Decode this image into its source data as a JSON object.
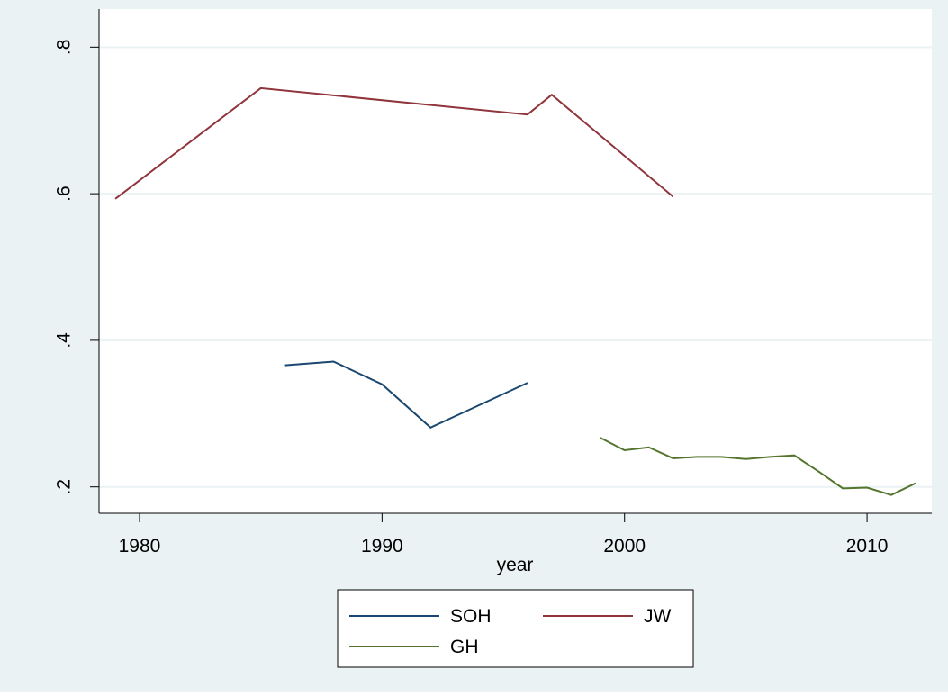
{
  "chart_data": {
    "type": "line",
    "x_label": "year",
    "xlim": [
      1978.33,
      2012.67
    ],
    "xticks": [
      1980,
      1990,
      2000,
      2010
    ],
    "ylim": [
      0.164,
      0.852
    ],
    "yticks": [
      {
        "value": 0.2,
        "label": ".2"
      },
      {
        "value": 0.4,
        "label": ".4"
      },
      {
        "value": 0.6,
        "label": ".6"
      },
      {
        "value": 0.8,
        "label": ".8"
      }
    ],
    "grid": true,
    "legend": "bottom",
    "series": [
      {
        "name": "SOH",
        "color": "#1a476f",
        "x": [
          1986,
          1988,
          1990,
          1992,
          1996
        ],
        "values": [
          0.366,
          0.371,
          0.34,
          0.281,
          0.342
        ]
      },
      {
        "name": "JW",
        "color": "#90353b",
        "x": [
          1979,
          1985,
          1996,
          1997,
          2002
        ],
        "values": [
          0.593,
          0.744,
          0.708,
          0.735,
          0.596
        ]
      },
      {
        "name": "GH",
        "color": "#55752f",
        "x": [
          1999,
          2000,
          2001,
          2002,
          2003,
          2004,
          2005,
          2006,
          2007,
          2008,
          2009,
          2010,
          2011,
          2012
        ],
        "values": [
          0.267,
          0.25,
          0.254,
          0.239,
          0.241,
          0.241,
          0.238,
          0.241,
          0.243,
          0.221,
          0.198,
          0.199,
          0.189,
          0.205
        ]
      }
    ]
  }
}
